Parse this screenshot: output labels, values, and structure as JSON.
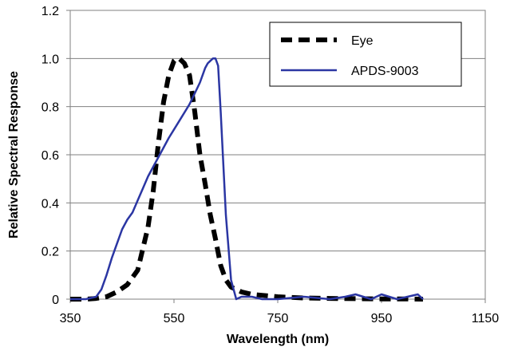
{
  "chart_data": {
    "type": "line",
    "xlabel": "Wavelength (nm)",
    "ylabel": "Relative Spectral Response",
    "xlim": [
      350,
      1150
    ],
    "ylim": [
      0,
      1.2
    ],
    "x_ticks": [
      "350",
      "550",
      "750",
      "950",
      "1150"
    ],
    "y_ticks": [
      "0",
      "0.2",
      "0.4",
      "0.6",
      "0.8",
      "1.0",
      "1.2"
    ],
    "grid": "horizontal",
    "legend_position": "top-right",
    "series": [
      {
        "name": "Eye",
        "style": "dashed",
        "color": "#000000",
        "x": [
          350,
          380,
          400,
          420,
          440,
          460,
          480,
          500,
          510,
          520,
          530,
          540,
          550,
          555,
          560,
          570,
          580,
          590,
          600,
          610,
          620,
          630,
          640,
          650,
          660,
          670,
          680,
          700,
          750,
          800,
          850,
          900,
          950,
          1000,
          1030
        ],
        "y": [
          0,
          0,
          0.003,
          0.01,
          0.03,
          0.06,
          0.12,
          0.3,
          0.45,
          0.65,
          0.82,
          0.93,
          0.99,
          1.0,
          1.0,
          0.98,
          0.93,
          0.78,
          0.6,
          0.48,
          0.35,
          0.25,
          0.14,
          0.08,
          0.05,
          0.04,
          0.03,
          0.02,
          0.01,
          0.005,
          0.003,
          0.002,
          0.001,
          0.001,
          0
        ]
      },
      {
        "name": "APDS-9003",
        "style": "solid",
        "color": "#2b36a3",
        "x": [
          350,
          380,
          400,
          410,
          420,
          430,
          440,
          450,
          460,
          470,
          480,
          490,
          500,
          520,
          540,
          560,
          580,
          600,
          610,
          615,
          620,
          625,
          630,
          635,
          640,
          650,
          660,
          670,
          680,
          700,
          720,
          750,
          800,
          850,
          880,
          900,
          930,
          950,
          980,
          1000,
          1020,
          1030
        ],
        "y": [
          0,
          0,
          0.01,
          0.04,
          0.1,
          0.17,
          0.23,
          0.29,
          0.33,
          0.36,
          0.41,
          0.46,
          0.51,
          0.59,
          0.67,
          0.74,
          0.81,
          0.9,
          0.96,
          0.98,
          0.99,
          1.0,
          1.0,
          0.97,
          0.78,
          0.35,
          0.08,
          0.0,
          0.01,
          0.01,
          0.0,
          0.0,
          0.01,
          0.0,
          0.01,
          0.02,
          0.0,
          0.02,
          0.0,
          0.01,
          0.02,
          0.0
        ]
      }
    ]
  }
}
